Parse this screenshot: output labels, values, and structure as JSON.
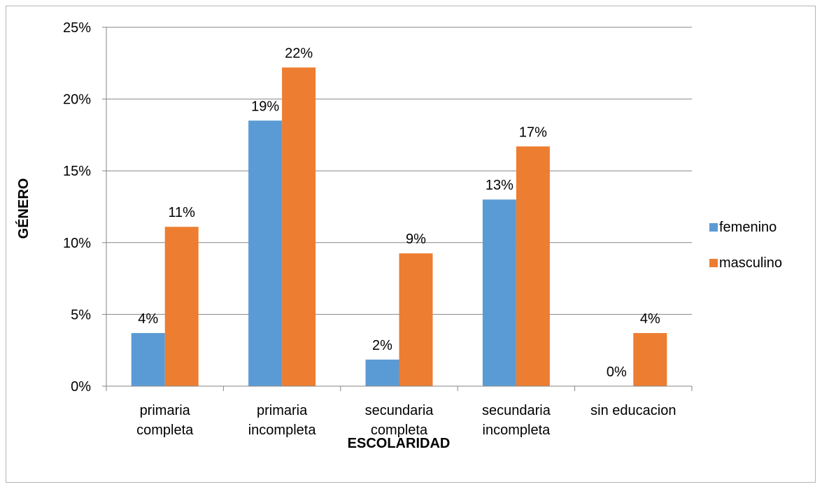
{
  "chart_data": {
    "type": "bar",
    "title": "",
    "xlabel": "ESCOLARIDAD",
    "ylabel": "GÉNERO",
    "categories": [
      [
        "primaria",
        "completa"
      ],
      [
        "primaria",
        "incompleta"
      ],
      [
        "secundaria",
        "completa"
      ],
      [
        "secundaria",
        "incompleta"
      ],
      [
        "sin educacion"
      ]
    ],
    "series": [
      {
        "name": "femenino",
        "color": "#5b9bd5",
        "values": [
          3.7,
          18.5,
          1.85,
          13.0,
          0
        ],
        "labels": [
          "4%",
          "19%",
          "2%",
          "13%",
          "0%"
        ]
      },
      {
        "name": "masculino",
        "color": "#ed7d31",
        "values": [
          11.1,
          22.2,
          9.25,
          16.7,
          3.7
        ],
        "labels": [
          "11%",
          "22%",
          "9%",
          "17%",
          "4%"
        ]
      }
    ],
    "ylim": [
      0,
      25
    ],
    "yticks": [
      0,
      5,
      10,
      15,
      20,
      25
    ],
    "ytick_labels": [
      "0%",
      "5%",
      "10%",
      "15%",
      "20%",
      "25%"
    ],
    "grid": true,
    "legend": "right"
  }
}
